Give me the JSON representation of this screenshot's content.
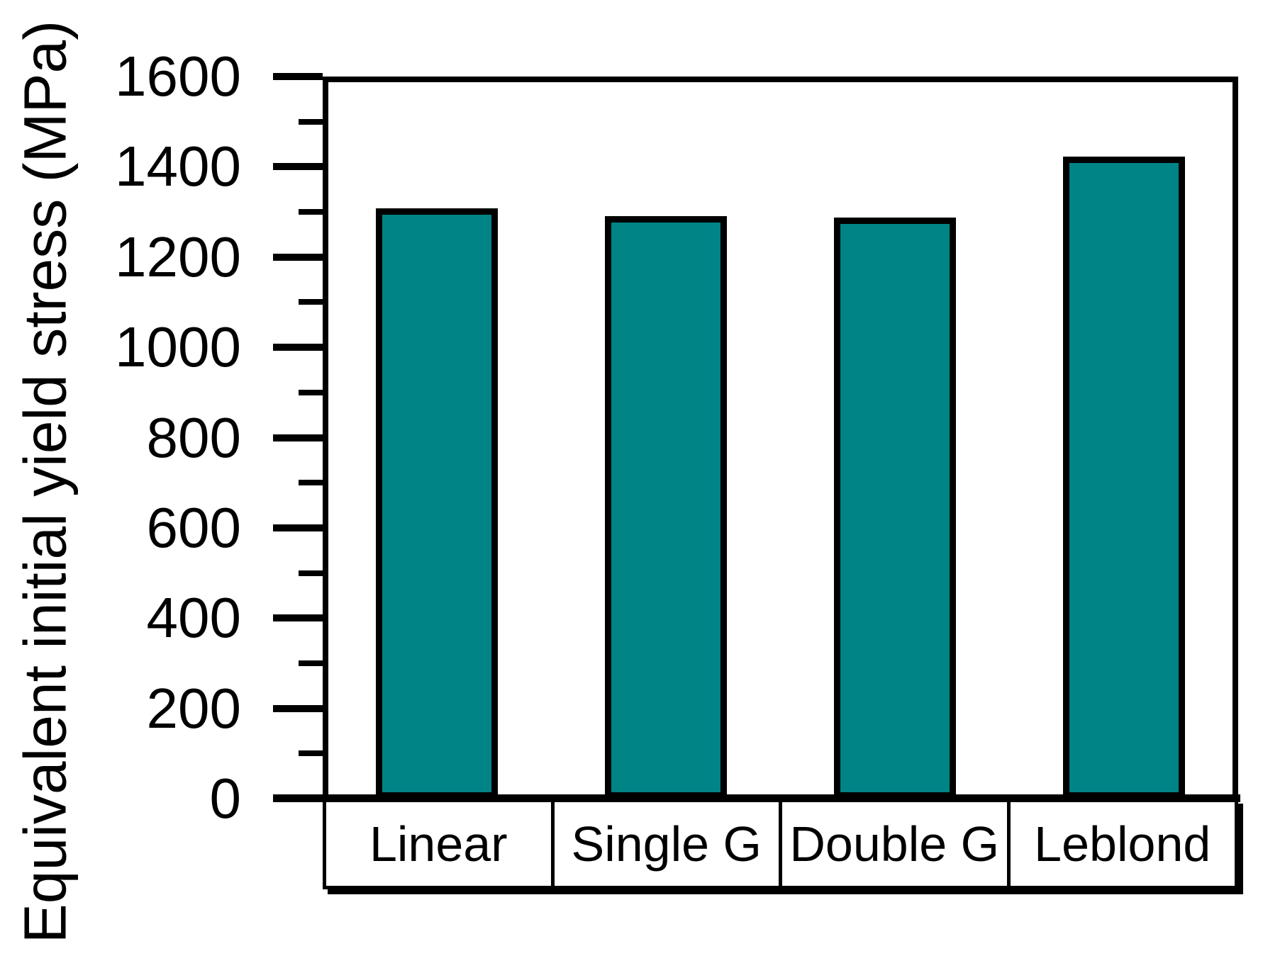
{
  "chart_data": {
    "type": "bar",
    "title": "",
    "categories": [
      "Linear",
      "Single G",
      "Double G",
      "Leblond"
    ],
    "values": [
      1300,
      1283,
      1280,
      1415
    ],
    "series": [
      {
        "name": "Equivalent initial yield stress",
        "values": [
          1300,
          1283,
          1280,
          1415
        ]
      }
    ],
    "xlabel": "",
    "ylabel": "Equivalent initial yield stress (MPa)",
    "ylim": [
      0,
      1600
    ],
    "y_major_tick_step": 200,
    "y_minor_tick_step": 100,
    "y_tick_labels": [
      "0",
      "200",
      "400",
      "600",
      "800",
      "1000",
      "1200",
      "1400",
      "1600"
    ],
    "grid": false,
    "legend_position": "none",
    "bar_color": "#008486",
    "bar_border_color": "#000000",
    "axis_color": "#000000",
    "background_color": "#ffffff"
  }
}
